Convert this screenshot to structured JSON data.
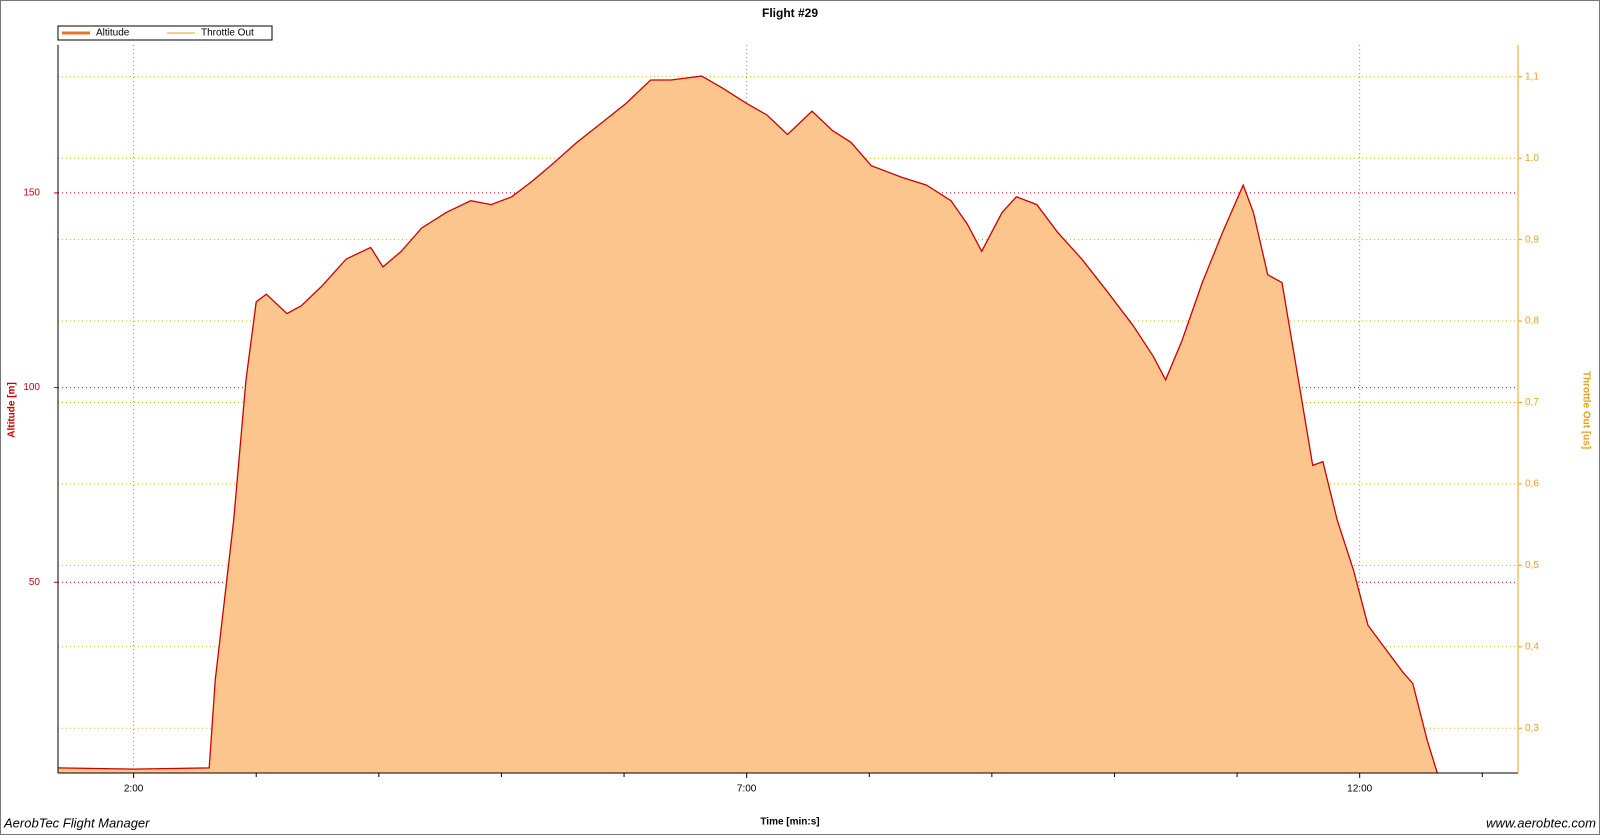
{
  "chart_data": {
    "type": "area",
    "title": "Flight #29",
    "xlabel": "Time [min:s]",
    "ylabel": "Altitude [m]",
    "y2label": "Throttle Out [us]",
    "legend": "top-left",
    "x": [
      83,
      120,
      157,
      160,
      169,
      175,
      180,
      185,
      195,
      202,
      212,
      224,
      236,
      242,
      251,
      261,
      273,
      285,
      295,
      305,
      315,
      324,
      337,
      349,
      361,
      373,
      383,
      398,
      408,
      420,
      430,
      440,
      452,
      462,
      471,
      481,
      496,
      508,
      520,
      528,
      535,
      545,
      552,
      562,
      572,
      584,
      596,
      609,
      619,
      625,
      633,
      643,
      653,
      663,
      668,
      675,
      682,
      690,
      697,
      702,
      709,
      717,
      724,
      731,
      741,
      746,
      753,
      758
    ],
    "series": [
      {
        "name": "Altitude",
        "color": "#cc0000",
        "fill": "#fcc58e",
        "legend_color": "#e8742a",
        "values": [
          2.3,
          2,
          2.3,
          25,
          66,
          102,
          122,
          124,
          119,
          121,
          126,
          133,
          136,
          131,
          135,
          141,
          145,
          148,
          147,
          149,
          153,
          157,
          163,
          168,
          173,
          179,
          179,
          180,
          177,
          173,
          170,
          165,
          171,
          166,
          163,
          157,
          154,
          152,
          148,
          142,
          135,
          145,
          149,
          147,
          140,
          133,
          125,
          116,
          108,
          102,
          112,
          127,
          140,
          152,
          145,
          129,
          127,
          102,
          80,
          81,
          66,
          53,
          39,
          34,
          27,
          24,
          9.5,
          1
        ]
      },
      {
        "name": "Throttle Out",
        "color": "#e8a020",
        "axis": "y2",
        "values": [
          null,
          null,
          null,
          null,
          null,
          null,
          null,
          null,
          null,
          null,
          null,
          null,
          null,
          null,
          null,
          null,
          null,
          null,
          null,
          null,
          null,
          null,
          null,
          null,
          null,
          null,
          null,
          null,
          null,
          null,
          null,
          null,
          null,
          null,
          null,
          null,
          null,
          null,
          null,
          null,
          null,
          null,
          null,
          null,
          null,
          null,
          null,
          null,
          null,
          null,
          null,
          null,
          null,
          null,
          null,
          null,
          null,
          null,
          null,
          null,
          null,
          null,
          null,
          null,
          null,
          null,
          null,
          null
        ]
      }
    ],
    "xlim": [
      83,
      796
    ],
    "xticks": [
      {
        "value": 120,
        "label": "2:00"
      },
      {
        "value": 420,
        "label": "7:00"
      },
      {
        "value": 720,
        "label": "12:00"
      }
    ],
    "x_minor_ticks": [
      180,
      240,
      300,
      360,
      480,
      540,
      600,
      660,
      780
    ],
    "ylim": [
      1,
      188
    ],
    "yticks": [
      50,
      100,
      150
    ],
    "y2lim": [
      0.245,
      1.139
    ],
    "y2ticks": [
      {
        "value": 0.3,
        "label": "0,3"
      },
      {
        "value": 0.4,
        "label": "0,4"
      },
      {
        "value": 0.5,
        "label": "0,5"
      },
      {
        "value": 0.6,
        "label": "0,6"
      },
      {
        "value": 0.7,
        "label": "0,7"
      },
      {
        "value": 0.8,
        "label": "0,8"
      },
      {
        "value": 0.9,
        "label": "0,9"
      },
      {
        "value": 1.0,
        "label": "1,0"
      },
      {
        "value": 1.1,
        "label": "1,1"
      }
    ],
    "grid": true
  },
  "footer": {
    "left": "AerobTec Flight Manager",
    "right": "www.aerobtec.com"
  }
}
